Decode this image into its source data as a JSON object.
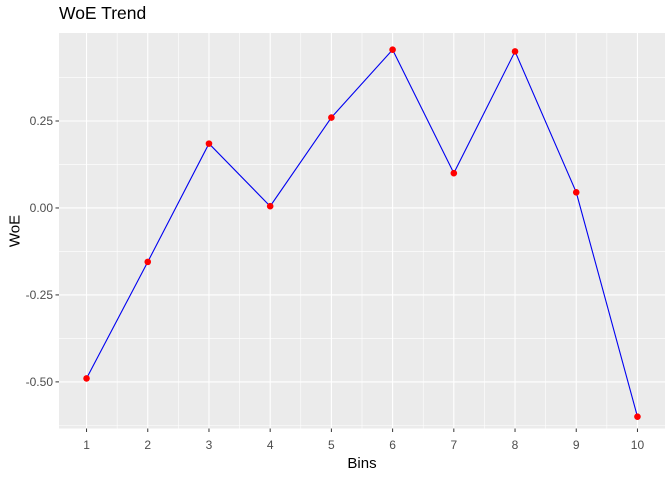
{
  "chart_data": {
    "type": "line",
    "title": "WoE Trend",
    "xlabel": "Bins",
    "ylabel": "WoE",
    "categories": [
      1,
      2,
      3,
      4,
      5,
      6,
      7,
      8,
      9,
      10
    ],
    "series": [
      {
        "name": "WoE",
        "values": [
          -0.49,
          -0.155,
          0.185,
          0.005,
          0.26,
          0.455,
          0.1,
          0.45,
          0.045,
          -0.6
        ]
      }
    ],
    "x_ticks": [
      "1",
      "2",
      "3",
      "4",
      "5",
      "6",
      "7",
      "8",
      "9",
      "10"
    ],
    "y_ticks": [
      {
        "value": 0.25,
        "label": "0.25"
      },
      {
        "value": 0.0,
        "label": "0.00"
      },
      {
        "value": -0.25,
        "label": "-0.25"
      },
      {
        "value": -0.5,
        "label": "-0.50"
      }
    ],
    "xlim": [
      0.55,
      10.45
    ],
    "ylim": [
      -0.634,
      0.503
    ],
    "grid": "major-and-minor",
    "legend": "none",
    "style": {
      "panel_background": "#EBEBEB",
      "grid_color": "#FFFFFF",
      "line_color": "#0000F0",
      "point_color": "#FF0000",
      "tick_label_color": "#4D4D4D",
      "tick_mark_color": "#333333",
      "axis_title_color": "#000000",
      "title_color": "#000000",
      "outer_background": "#FFFFFF"
    }
  }
}
